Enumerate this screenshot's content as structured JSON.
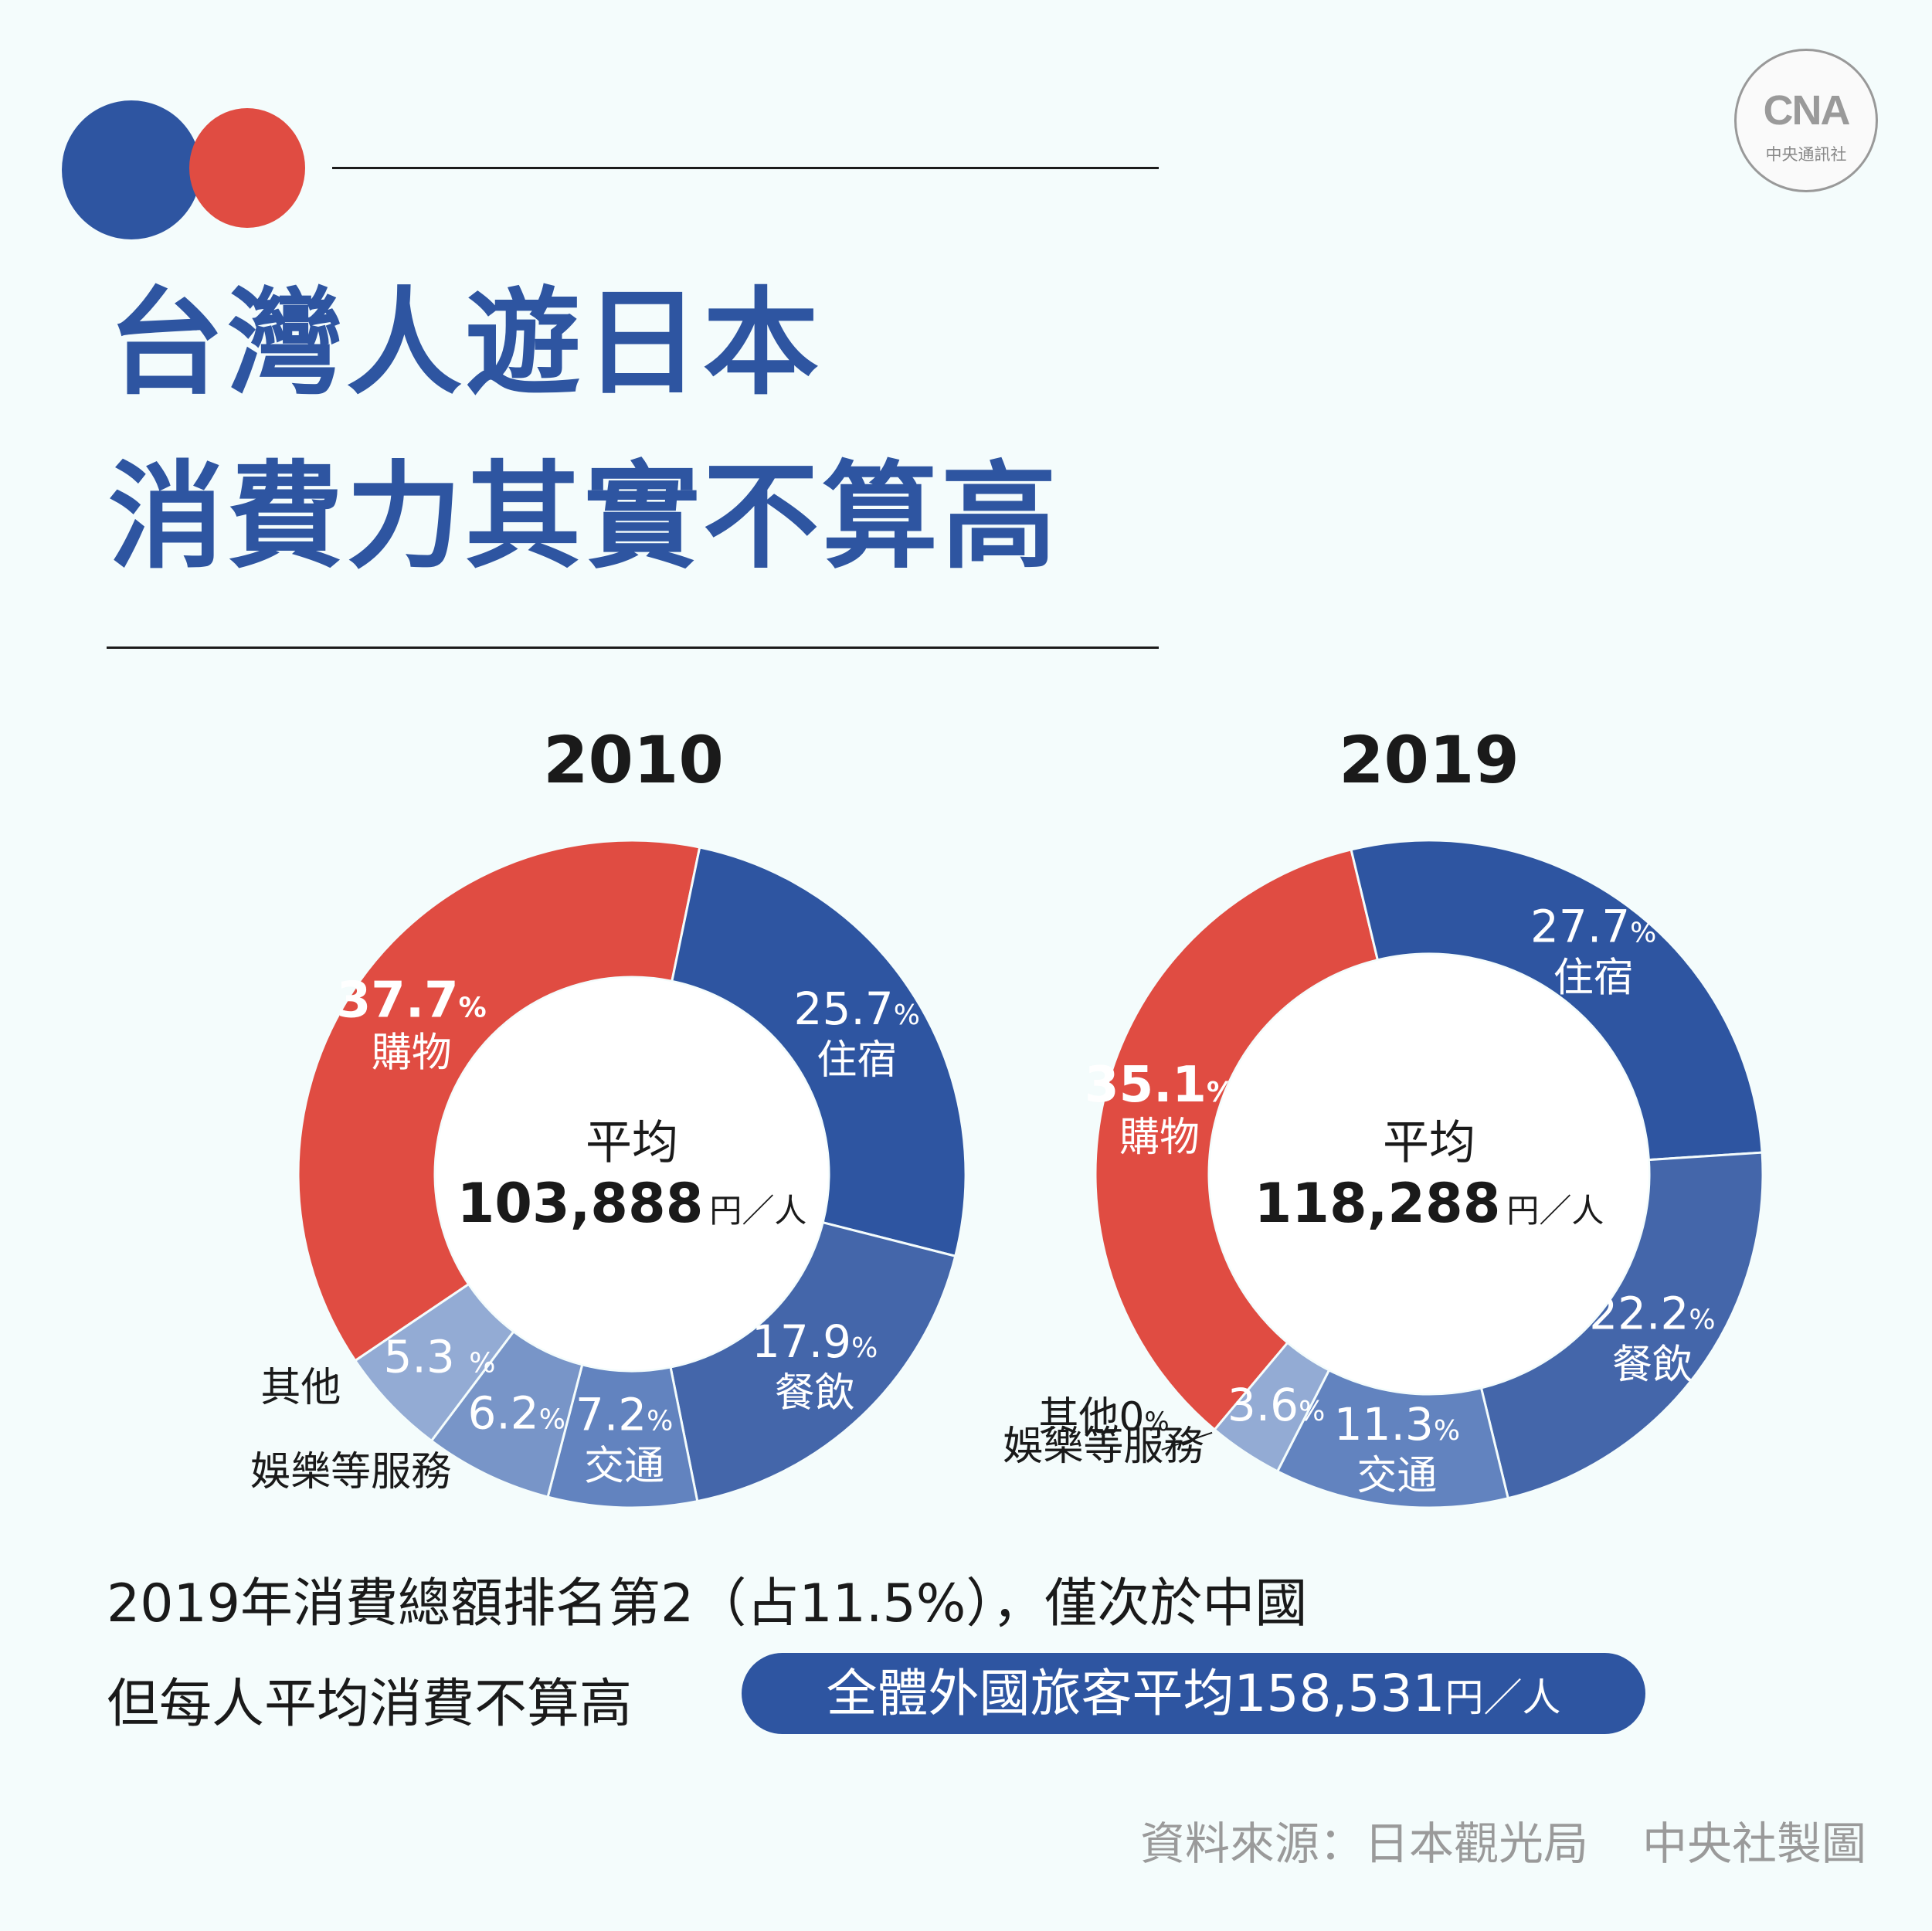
{
  "title": {
    "line1": "台灣人遊日本",
    "line2": "消費力其實不算高"
  },
  "logo": {
    "mark": "CNA",
    "text": "中央通訊社"
  },
  "chart_data": [
    {
      "type": "donut",
      "title": "2010",
      "center_label": "平均",
      "center_value": "103,888",
      "center_unit": "円／人",
      "slices": [
        {
          "name": "購物",
          "value": 37.7,
          "value_text": "37.7",
          "color": "#e04c42"
        },
        {
          "name": "住宿",
          "value": 25.7,
          "value_text": "25.7",
          "color": "#2e55a1"
        },
        {
          "name": "餐飲",
          "value": 17.9,
          "value_text": "17.9",
          "color": "#4466aa"
        },
        {
          "name": "交通",
          "value": 7.2,
          "value_text": "7.2",
          "color": "#6283bf"
        },
        {
          "name": "娛樂等服務",
          "value": 6.2,
          "value_text": "6.2",
          "color": "#7895c8"
        },
        {
          "name": "其他",
          "value": 5.3,
          "value_text": "5.3 ",
          "color": "#93abd4"
        }
      ]
    },
    {
      "type": "donut",
      "title": "2019",
      "center_label": "平均",
      "center_value": "118,288",
      "center_unit": "円／人",
      "slices": [
        {
          "name": "購物",
          "value": 35.1,
          "value_text": "35.1",
          "color": "#e04c42"
        },
        {
          "name": "住宿",
          "value": 27.7,
          "value_text": "27.7",
          "color": "#2e55a1"
        },
        {
          "name": "餐飲",
          "value": 22.2,
          "value_text": "22.2",
          "color": "#4466aa"
        },
        {
          "name": "交通",
          "value": 11.3,
          "value_text": "11.3",
          "color": "#6283bf"
        },
        {
          "name": "娛樂等服務",
          "value": 3.6,
          "value_text": "3.6",
          "color": "#93abd4"
        },
        {
          "name": "其他",
          "value": 0,
          "value_text": "0",
          "color": "#b0c2e0"
        }
      ]
    }
  ],
  "percent_sign": "%",
  "notes": {
    "line1": "2019年消費總額排名第2（占11.5%），僅次於中國",
    "line2": "但每人平均消費不算高",
    "pill_text": "全體外國旅客平均158,531",
    "pill_unit": "円／人"
  },
  "source": {
    "left": "資料來源：日本觀光局",
    "right": "中央社製圖"
  }
}
